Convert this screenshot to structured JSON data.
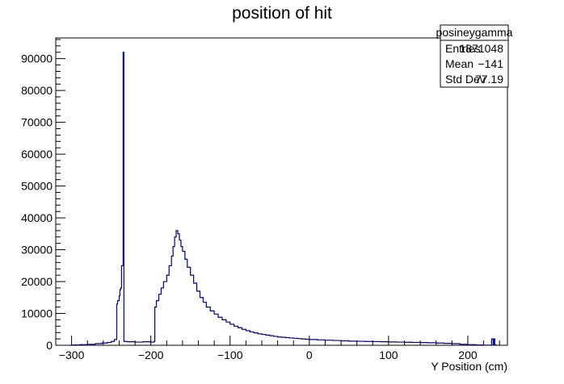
{
  "chart_data": {
    "type": "histogram",
    "title": "position of hit",
    "xlabel": "Y Position (cm)",
    "ylabel": "",
    "xlim": [
      -320,
      250
    ],
    "ylim": [
      0,
      96500
    ],
    "x_ticks": [
      -300,
      -200,
      -100,
      0,
      100,
      200
    ],
    "y_ticks": [
      0,
      10000,
      20000,
      30000,
      40000,
      50000,
      60000,
      70000,
      80000,
      90000
    ],
    "line_color": "#000080",
    "stats_box": {
      "name": "posineygamma",
      "rows": [
        {
          "label": "Entries",
          "value": "1871048"
        },
        {
          "label": "Mean",
          "value": "−141"
        },
        {
          "label": "Std Dev",
          "value": "77.19"
        }
      ]
    },
    "bins": [
      [
        -302,
        0
      ],
      [
        -300,
        100
      ],
      [
        -290,
        200
      ],
      [
        -280,
        300
      ],
      [
        -270,
        500
      ],
      [
        -262,
        700
      ],
      [
        -255,
        900
      ],
      [
        -250,
        1200
      ],
      [
        -246,
        1800
      ],
      [
        -243,
        13000
      ],
      [
        -242,
        14000
      ],
      [
        -240,
        15500
      ],
      [
        -239,
        17500
      ],
      [
        -238,
        18000
      ],
      [
        -237,
        25000
      ],
      [
        -236,
        25000
      ],
      [
        -235,
        92000
      ],
      [
        -234,
        1200
      ],
      [
        -230,
        1100
      ],
      [
        -220,
        1000
      ],
      [
        -210,
        1100
      ],
      [
        -200,
        1000
      ],
      [
        -196,
        1200
      ],
      [
        -195,
        12000
      ],
      [
        -193,
        14000
      ],
      [
        -190,
        16000
      ],
      [
        -187,
        18000
      ],
      [
        -184,
        20000
      ],
      [
        -180,
        22000
      ],
      [
        -177,
        25000
      ],
      [
        -174,
        28000
      ],
      [
        -172,
        31000
      ],
      [
        -170,
        34000
      ],
      [
        -168,
        36000
      ],
      [
        -166,
        35000
      ],
      [
        -164,
        33000
      ],
      [
        -162,
        31000
      ],
      [
        -160,
        29500
      ],
      [
        -157,
        27000
      ],
      [
        -154,
        24500
      ],
      [
        -150,
        22000
      ],
      [
        -146,
        19500
      ],
      [
        -142,
        17000
      ],
      [
        -138,
        15000
      ],
      [
        -134,
        13500
      ],
      [
        -130,
        12000
      ],
      [
        -125,
        10800
      ],
      [
        -120,
        9800
      ],
      [
        -115,
        8800
      ],
      [
        -110,
        8000
      ],
      [
        -105,
        7300
      ],
      [
        -100,
        6600
      ],
      [
        -95,
        6000
      ],
      [
        -90,
        5500
      ],
      [
        -85,
        5000
      ],
      [
        -80,
        4600
      ],
      [
        -75,
        4200
      ],
      [
        -70,
        3900
      ],
      [
        -65,
        3600
      ],
      [
        -60,
        3400
      ],
      [
        -55,
        3200
      ],
      [
        -50,
        3000
      ],
      [
        -45,
        2800
      ],
      [
        -40,
        2600
      ],
      [
        -35,
        2500
      ],
      [
        -30,
        2400
      ],
      [
        -25,
        2300
      ],
      [
        -20,
        2200
      ],
      [
        -15,
        2100
      ],
      [
        -10,
        2000
      ],
      [
        -5,
        1900
      ],
      [
        0,
        1800
      ],
      [
        10,
        1700
      ],
      [
        20,
        1600
      ],
      [
        30,
        1500
      ],
      [
        40,
        1400
      ],
      [
        50,
        1300
      ],
      [
        60,
        1250
      ],
      [
        70,
        1200
      ],
      [
        80,
        1150
      ],
      [
        90,
        1100
      ],
      [
        100,
        1050
      ],
      [
        110,
        1000
      ],
      [
        120,
        950
      ],
      [
        130,
        900
      ],
      [
        140,
        850
      ],
      [
        150,
        800
      ],
      [
        160,
        700
      ],
      [
        170,
        600
      ],
      [
        180,
        500
      ],
      [
        190,
        300
      ],
      [
        200,
        200
      ],
      [
        210,
        100
      ],
      [
        220,
        50
      ],
      [
        230,
        2000
      ],
      [
        231,
        2000
      ],
      [
        232,
        100
      ],
      [
        233,
        2000
      ],
      [
        234,
        100
      ],
      [
        236,
        0
      ]
    ]
  }
}
